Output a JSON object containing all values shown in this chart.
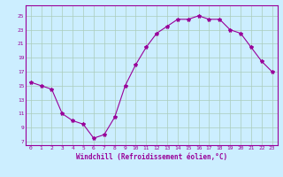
{
  "x": [
    0,
    1,
    2,
    3,
    4,
    5,
    6,
    7,
    8,
    9,
    10,
    11,
    12,
    13,
    14,
    15,
    16,
    17,
    18,
    19,
    20,
    21,
    22,
    23
  ],
  "y": [
    15.5,
    15.0,
    14.5,
    11.0,
    10.0,
    9.5,
    7.5,
    8.0,
    10.5,
    15.0,
    18.0,
    20.5,
    22.5,
    23.5,
    24.5,
    24.5,
    25.0,
    24.5,
    24.5,
    23.0,
    22.5,
    20.5,
    18.5,
    17.0
  ],
  "line_color": "#990099",
  "marker": "*",
  "marker_size": 3,
  "bg_color": "#cceeff",
  "grid_color": "#aaccbb",
  "xlabel": "Windchill (Refroidissement éolien,°C)",
  "ylabel_ticks": [
    7,
    9,
    11,
    13,
    15,
    17,
    19,
    21,
    23,
    25
  ],
  "ylim": [
    6.5,
    26.5
  ],
  "xlim": [
    -0.5,
    23.5
  ],
  "tick_color": "#990099",
  "label_color": "#990099"
}
